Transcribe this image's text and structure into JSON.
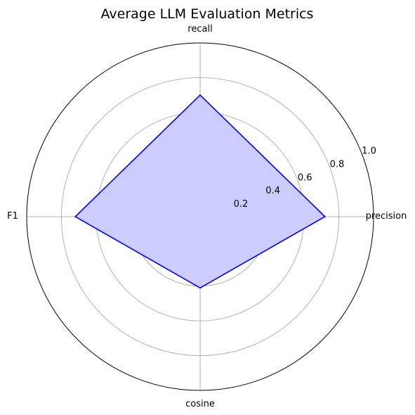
{
  "chart_data": {
    "type": "radar",
    "title": "Average LLM Evaluation Metrics",
    "categories": [
      "precision",
      "recall",
      "F1",
      "cosine"
    ],
    "values": [
      0.72,
      0.7,
      0.72,
      0.41
    ],
    "rlim": [
      0,
      1.0
    ],
    "r_ticks": [
      "0.2",
      "0.4",
      "0.6",
      "0.8",
      "1.0"
    ],
    "grid": true,
    "colors": {
      "line": "#0000ff",
      "fill": "#ccccff",
      "grid": "#b0b0b0",
      "frame": "#000000"
    }
  }
}
